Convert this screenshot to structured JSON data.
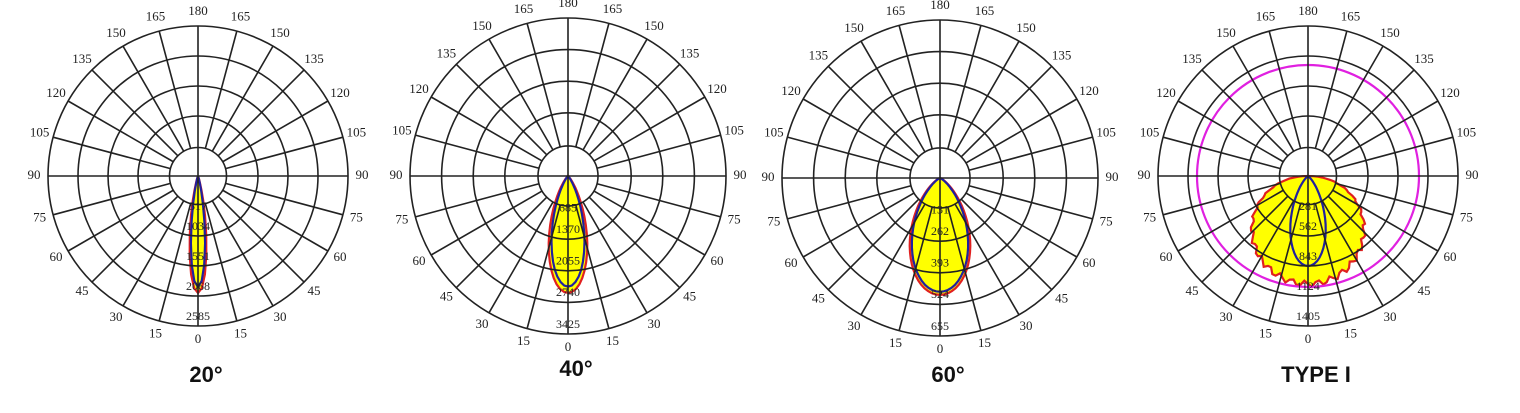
{
  "angle_labels": [
    "0",
    "15",
    "30",
    "45",
    "60",
    "75",
    "90",
    "105",
    "120",
    "135",
    "150",
    "165",
    "180"
  ],
  "diagrams": [
    {
      "caption": "20°",
      "ring_labels": [
        "517",
        "1034",
        "1551",
        "2068",
        "2585"
      ]
    },
    {
      "caption": "40°",
      "ring_labels": [
        "685",
        "1370",
        "2055",
        "2740",
        "3425"
      ]
    },
    {
      "caption": "60°",
      "ring_labels": [
        "131",
        "262",
        "393",
        "524",
        "655"
      ]
    },
    {
      "caption": "TYPE I",
      "ring_labels": [
        "281",
        "562",
        "843",
        "1124",
        "1405"
      ]
    }
  ]
}
